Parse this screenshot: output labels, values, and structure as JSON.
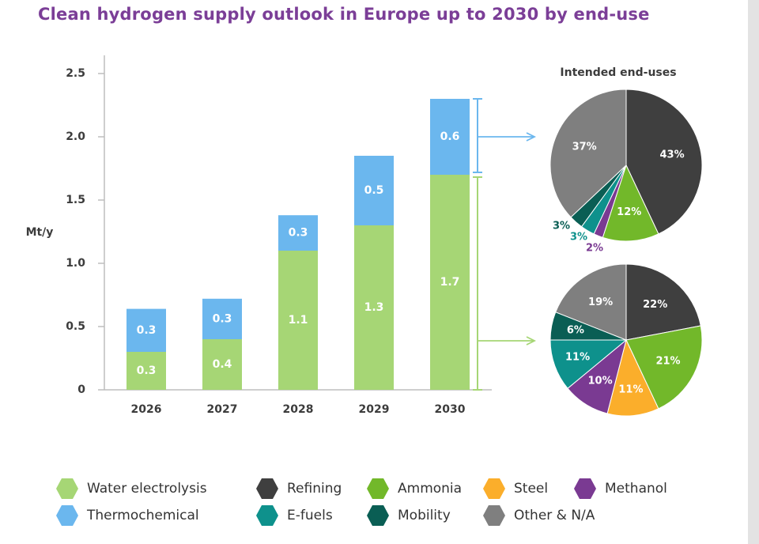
{
  "title": "Clean hydrogen supply outlook in Europe up to 2030 by end-use",
  "colors": {
    "electrolysis": "#a6d675",
    "thermochemical": "#6bb7ee",
    "refining": "#3f3f3f",
    "ammonia": "#72b82a",
    "steel": "#fbae2b",
    "methanol": "#7a3a92",
    "efuels": "#0e918c",
    "mobility": "#0a5e54",
    "other": "#7f7f7f",
    "axis_text": "#3c3c3c"
  },
  "legend": [
    {
      "label": "Water electrolysis",
      "color": "#a6d675"
    },
    {
      "label": "Refining",
      "color": "#3f3f3f"
    },
    {
      "label": "Ammonia",
      "color": "#72b82a"
    },
    {
      "label": "Steel",
      "color": "#fbae2b"
    },
    {
      "label": "Methanol",
      "color": "#7a3a92"
    },
    {
      "label": "Thermochemical",
      "color": "#6bb7ee"
    },
    {
      "label": "E-fuels",
      "color": "#0e918c"
    },
    {
      "label": "Mobility",
      "color": "#0a5e54"
    },
    {
      "label": "Other & N/A",
      "color": "#7f7f7f"
    }
  ],
  "chart_data": [
    {
      "type": "bar",
      "stacked": true,
      "ylabel": "Mt/y",
      "ylim": [
        0,
        2.5
      ],
      "yticks": [
        "0",
        "0.5",
        "1.0",
        "1.5",
        "2.0",
        "2.5"
      ],
      "categories": [
        "2026",
        "2027",
        "2028",
        "2029",
        "2030"
      ],
      "series": [
        {
          "name": "Water electrolysis",
          "values": [
            0.3,
            0.4,
            1.1,
            1.3,
            1.7
          ],
          "labels": [
            "0.3",
            "0.4",
            "1.1",
            "1.3",
            "1.7"
          ]
        },
        {
          "name": "Thermochemical",
          "values": [
            0.3,
            0.3,
            0.3,
            0.5,
            0.6
          ],
          "labels": [
            "0.3",
            "0.3",
            "0.3",
            "0.5",
            "0.6"
          ]
        }
      ],
      "totals": [
        0.64,
        0.72,
        1.38,
        1.85,
        2.3
      ],
      "grid": false
    },
    {
      "type": "pie",
      "title": "Intended end-uses",
      "slices": [
        {
          "name": "Refining",
          "value": 43,
          "label": "43%"
        },
        {
          "name": "Ammonia",
          "value": 12,
          "label": "12%"
        },
        {
          "name": "Methanol",
          "value": 2,
          "label": "2%"
        },
        {
          "name": "E-fuels",
          "value": 3,
          "label": "3%"
        },
        {
          "name": "Mobility",
          "value": 3,
          "label": "3%"
        },
        {
          "name": "Other & N/A",
          "value": 37,
          "label": "37%"
        }
      ]
    },
    {
      "type": "pie",
      "slices": [
        {
          "name": "Refining",
          "value": 22,
          "label": "22%"
        },
        {
          "name": "Ammonia",
          "value": 21,
          "label": "21%"
        },
        {
          "name": "Steel",
          "value": 11,
          "label": "11%"
        },
        {
          "name": "Methanol",
          "value": 10,
          "label": "10%"
        },
        {
          "name": "E-fuels",
          "value": 11,
          "label": "11%"
        },
        {
          "name": "Mobility",
          "value": 6,
          "label": "6%"
        },
        {
          "name": "Other & N/A",
          "value": 19,
          "label": "19%"
        }
      ]
    }
  ]
}
